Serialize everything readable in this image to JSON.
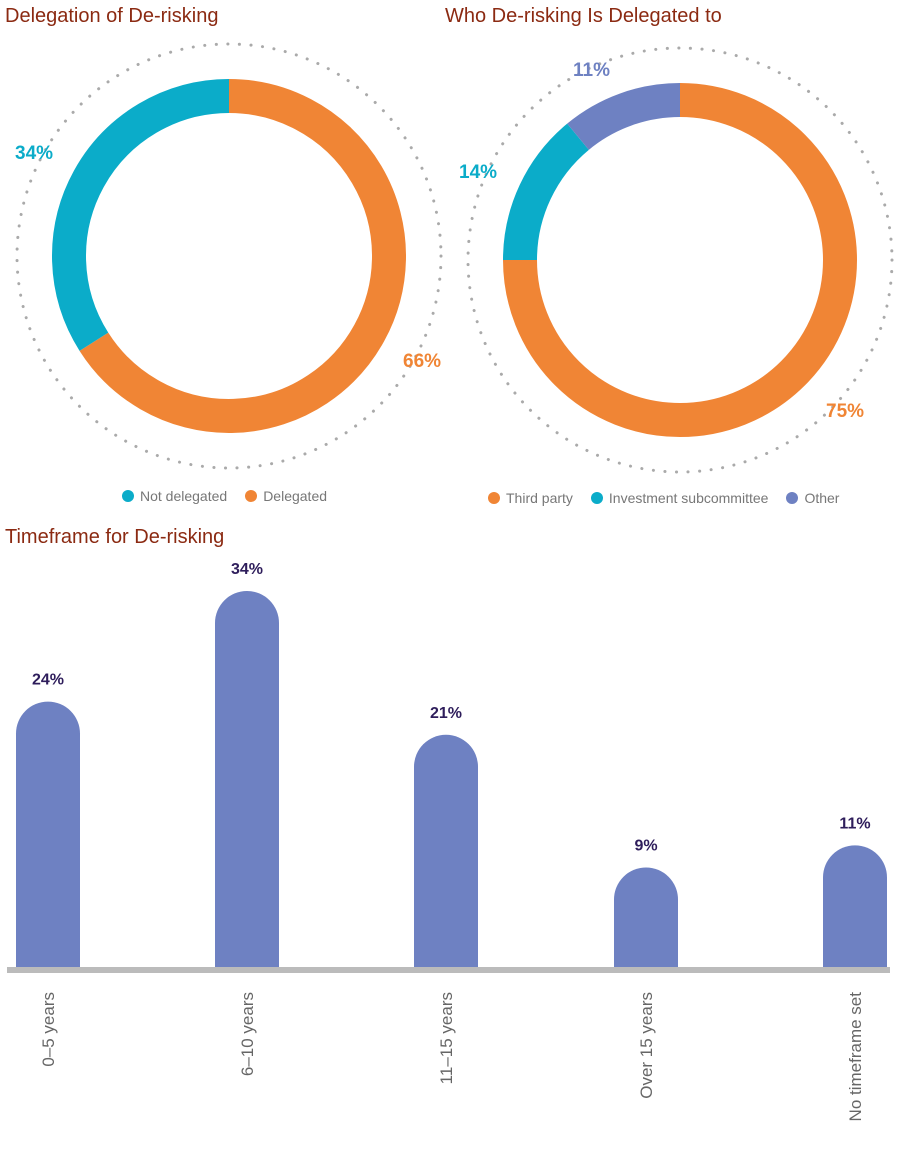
{
  "colors": {
    "orange": "#f08535",
    "teal": "#0bacc9",
    "purple": "#6e81c2",
    "title": "#8b2a12",
    "bar_label": "#2e1d5b",
    "axis": "#bbbbbb",
    "tick": "#666666"
  },
  "chart_data": [
    {
      "type": "pie",
      "title": "Delegation of De-risking",
      "labels": [
        "Not delegated",
        "Delegated"
      ],
      "values": [
        34,
        66
      ],
      "display": [
        "34%",
        "66%"
      ],
      "colors": [
        "#0bacc9",
        "#f08535"
      ],
      "legend": "bottom"
    },
    {
      "type": "pie",
      "title": "Who De-risking Is Delegated to",
      "labels": [
        "Third party",
        "Investment subcommittee",
        "Other"
      ],
      "values": [
        75,
        14,
        11
      ],
      "display": [
        "75%",
        "14%",
        "11%"
      ],
      "colors": [
        "#f08535",
        "#0bacc9",
        "#6e81c2"
      ],
      "legend": "bottom"
    },
    {
      "type": "bar",
      "title": "Timeframe for De-risking",
      "categories": [
        "0–5 years",
        "6–10 years",
        "11–15 years",
        "Over 15 years",
        "No timeframe set"
      ],
      "values": [
        24,
        34,
        21,
        9,
        11
      ],
      "display": [
        "24%",
        "34%",
        "21%",
        "9%",
        "11%"
      ],
      "color": "#6e81c2",
      "ylim": [
        0,
        34
      ],
      "grid": false
    }
  ]
}
